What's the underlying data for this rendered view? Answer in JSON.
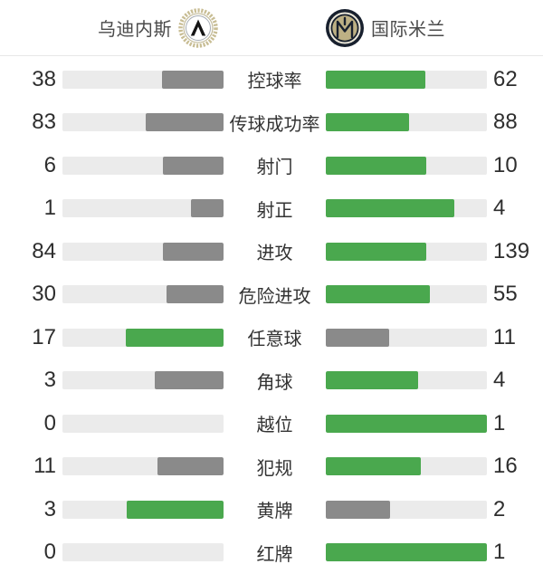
{
  "header": {
    "home": {
      "name": "乌迪内斯"
    },
    "away": {
      "name": "国际米兰"
    }
  },
  "stats": {
    "rows": [
      {
        "label": "控球率",
        "home": 38,
        "away": 62
      },
      {
        "label": "传球成功率",
        "home": 83,
        "away": 88
      },
      {
        "label": "射门",
        "home": 6,
        "away": 10
      },
      {
        "label": "射正",
        "home": 1,
        "away": 4
      },
      {
        "label": "进攻",
        "home": 84,
        "away": 139
      },
      {
        "label": "危险进攻",
        "home": 30,
        "away": 55
      },
      {
        "label": "任意球",
        "home": 17,
        "away": 11
      },
      {
        "label": "角球",
        "home": 3,
        "away": 4
      },
      {
        "label": "越位",
        "home": 0,
        "away": 1
      },
      {
        "label": "犯规",
        "home": 11,
        "away": 16
      },
      {
        "label": "黄牌",
        "home": 3,
        "away": 2
      },
      {
        "label": "红牌",
        "home": 0,
        "away": 1
      }
    ]
  },
  "chart_data": {
    "type": "bar",
    "categories": [
      "控球率",
      "传球成功率",
      "射门",
      "射正",
      "进攻",
      "危险进攻",
      "任意球",
      "角球",
      "越位",
      "犯规",
      "黄牌",
      "红牌"
    ],
    "series": [
      {
        "name": "乌迪内斯",
        "values": [
          38,
          83,
          6,
          1,
          84,
          30,
          17,
          3,
          0,
          11,
          3,
          0
        ]
      },
      {
        "name": "国际米兰",
        "values": [
          62,
          88,
          10,
          4,
          139,
          55,
          11,
          4,
          1,
          16,
          2,
          1
        ]
      }
    ],
    "layout": "mirrored horizontal bars, values at outer edges, labels centered; bar fill length = value / (home+away); higher value colored green, lower colored gray"
  },
  "colors": {
    "leader_green": "#4aa84e",
    "trailer_gray": "#8a8a8a",
    "track_gray": "#ebebeb",
    "value_text": "#2e2e2e",
    "label_text": "#333333",
    "header_text": "#4a4a4a",
    "divider": "#e7e7e7"
  }
}
